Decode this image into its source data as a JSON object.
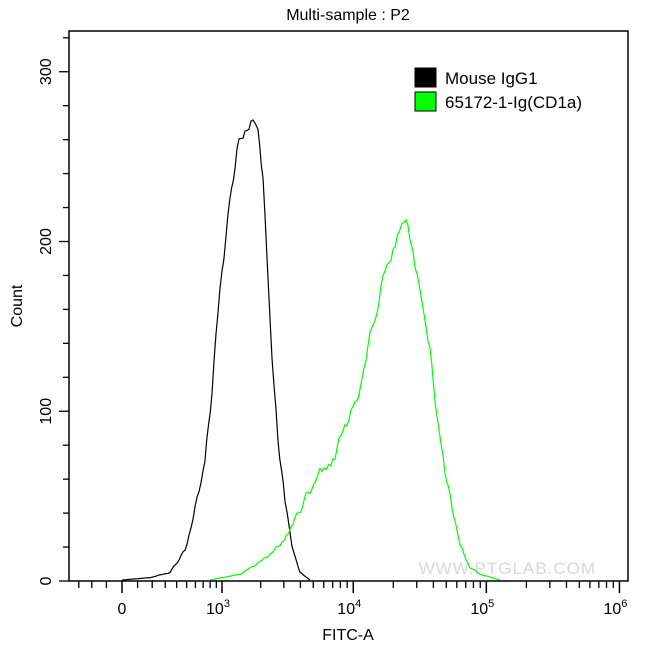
{
  "chart_data": {
    "type": "line",
    "title": "Multi-sample : P2",
    "xlabel": "FITC-A",
    "ylabel": "Count",
    "x_scale": "biexponential",
    "xlim": [
      -390,
      1000000
    ],
    "ylim": [
      0,
      324
    ],
    "x_ticks": [
      {
        "value": 0,
        "label": "0",
        "exp": ""
      },
      {
        "value": 1000,
        "label": "10",
        "exp": "3"
      },
      {
        "value": 10000,
        "label": "10",
        "exp": "4"
      },
      {
        "value": 100000,
        "label": "10",
        "exp": "5"
      },
      {
        "value": 1000000,
        "label": "10",
        "exp": "6"
      }
    ],
    "y_ticks": [
      0,
      100,
      200,
      300
    ],
    "grid": false,
    "legend_position": "top-right",
    "watermark": "WWW.PTGLAB.COM",
    "series": [
      {
        "name": "Mouse IgG1",
        "color": "#000000",
        "x": [
          0,
          184,
          340,
          483,
          597,
          724,
          830,
          962,
          1157,
          1314,
          1515,
          1746,
          1907,
          2083,
          2236,
          2438,
          2708,
          3060,
          3455,
          3971,
          4729
        ],
        "y": [
          0.6,
          2,
          5,
          18,
          42,
          71,
          113,
          172,
          225,
          254,
          266,
          269,
          263,
          237,
          189,
          130,
          83,
          48,
          21,
          5,
          0.6
        ]
      },
      {
        "name": "65172-1-Ig(CD1a)",
        "color": "#00ff00",
        "x": [
          799,
          1388,
          2046,
          2807,
          3642,
          4729,
          5815,
          7284,
          8660,
          10300,
          11640,
          13370,
          14570,
          17310,
          19900,
          23240,
          25770,
          29100,
          32830,
          37700,
          42600,
          48900,
          55200,
          63400,
          75300,
          89500,
          126600
        ],
        "y": [
          0.6,
          4,
          12,
          21,
          36,
          54,
          65,
          74,
          92,
          104,
          116,
          148,
          154,
          183,
          195,
          210,
          210,
          186,
          166,
          136,
          95,
          65,
          45,
          21,
          8,
          4,
          0.6
        ]
      }
    ]
  }
}
